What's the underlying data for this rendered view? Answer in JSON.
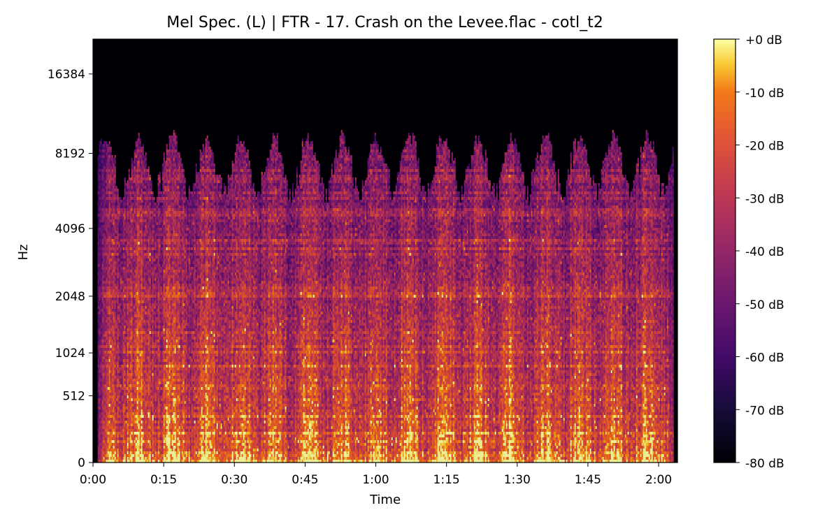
{
  "chart_data": {
    "type": "heatmap",
    "title": "Mel Spec. (L) | FTR - 17. Crash on the Levee.flac - cotl_t2",
    "xlabel": "Time",
    "ylabel": "Hz",
    "x_unit": "seconds",
    "x_range": [
      0,
      124
    ],
    "content_range_s": [
      1,
      123
    ],
    "x_ticks": [
      {
        "value": 0,
        "label": "0:00"
      },
      {
        "value": 15,
        "label": "0:15"
      },
      {
        "value": 30,
        "label": "0:30"
      },
      {
        "value": 45,
        "label": "0:45"
      },
      {
        "value": 60,
        "label": "1:00"
      },
      {
        "value": 75,
        "label": "1:15"
      },
      {
        "value": 90,
        "label": "1:30"
      },
      {
        "value": 105,
        "label": "1:45"
      },
      {
        "value": 120,
        "label": "2:00"
      }
    ],
    "y_scale": "mel",
    "y_range_hz": [
      0,
      22050
    ],
    "y_ticks": [
      {
        "value": 0,
        "label": "0"
      },
      {
        "value": 512,
        "label": "512"
      },
      {
        "value": 1024,
        "label": "1024"
      },
      {
        "value": 2048,
        "label": "2048"
      },
      {
        "value": 4096,
        "label": "4096"
      },
      {
        "value": 8192,
        "label": "8192"
      },
      {
        "value": 16384,
        "label": "16384"
      }
    ],
    "colormap": "inferno",
    "color_range_db": [
      -80,
      0
    ],
    "colorbar_ticks": [
      {
        "value": 0,
        "label": "+0 dB"
      },
      {
        "value": -10,
        "label": "-10 dB"
      },
      {
        "value": -20,
        "label": "-20 dB"
      },
      {
        "value": -30,
        "label": "-30 dB"
      },
      {
        "value": -40,
        "label": "-40 dB"
      },
      {
        "value": -50,
        "label": "-50 dB"
      },
      {
        "value": -60,
        "label": "-60 dB"
      },
      {
        "value": -70,
        "label": "-70 dB"
      },
      {
        "value": -80,
        "label": "-80 dB"
      }
    ],
    "grid": false
  }
}
